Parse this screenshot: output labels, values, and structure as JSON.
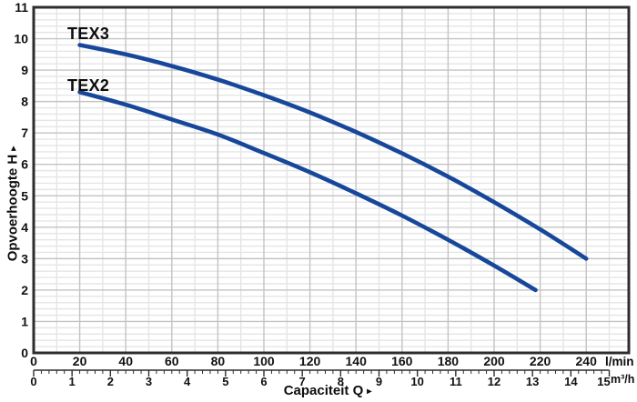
{
  "colors": {
    "curve": "#17479a",
    "grid_major": "#c3c3c3",
    "grid_minor": "#e5e5e5",
    "frame": "#2d2d2d",
    "text": "#111111",
    "background": "#ffffff"
  },
  "icons": {
    "axis_arrow": "▸"
  },
  "chart_data": {
    "type": "line",
    "title": "",
    "xlabel": "Capaciteit Q",
    "ylabel": "Opvoerhoogte H",
    "x_unit_primary": "l/min",
    "x_unit_secondary": "m³/h",
    "x_ticks_lmin": [
      0,
      20,
      40,
      60,
      80,
      100,
      120,
      140,
      160,
      180,
      200,
      220,
      240
    ],
    "x_ticks_m3h": [
      0,
      1,
      2,
      3,
      4,
      5,
      6,
      7,
      8,
      9,
      10,
      11,
      12,
      13,
      14,
      15
    ],
    "y_ticks": [
      0,
      1,
      2,
      3,
      4,
      5,
      6,
      7,
      8,
      9,
      10,
      11
    ],
    "xlim_lmin": [
      0,
      258
    ],
    "ylim": [
      0,
      11
    ],
    "grid": "on",
    "minor_grid_step_y": 0.2,
    "minor_grid_step_x_lmin": 10,
    "ruler_minor_step_m3h": 0.2,
    "series": [
      {
        "name": "TEX3",
        "points": [
          [
            20,
            9.8
          ],
          [
            40,
            9.5
          ],
          [
            60,
            9.13
          ],
          [
            80,
            8.7
          ],
          [
            100,
            8.2
          ],
          [
            120,
            7.65
          ],
          [
            140,
            7.03
          ],
          [
            160,
            6.35
          ],
          [
            180,
            5.61
          ],
          [
            200,
            4.8
          ],
          [
            220,
            3.93
          ],
          [
            240,
            3.0
          ]
        ]
      },
      {
        "name": "TEX2",
        "points": [
          [
            20,
            8.3
          ],
          [
            40,
            7.9
          ],
          [
            60,
            7.43
          ],
          [
            80,
            6.95
          ],
          [
            100,
            6.36
          ],
          [
            120,
            5.75
          ],
          [
            140,
            5.08
          ],
          [
            160,
            4.37
          ],
          [
            180,
            3.6
          ],
          [
            200,
            2.78
          ],
          [
            218,
            2.0
          ]
        ]
      }
    ]
  }
}
